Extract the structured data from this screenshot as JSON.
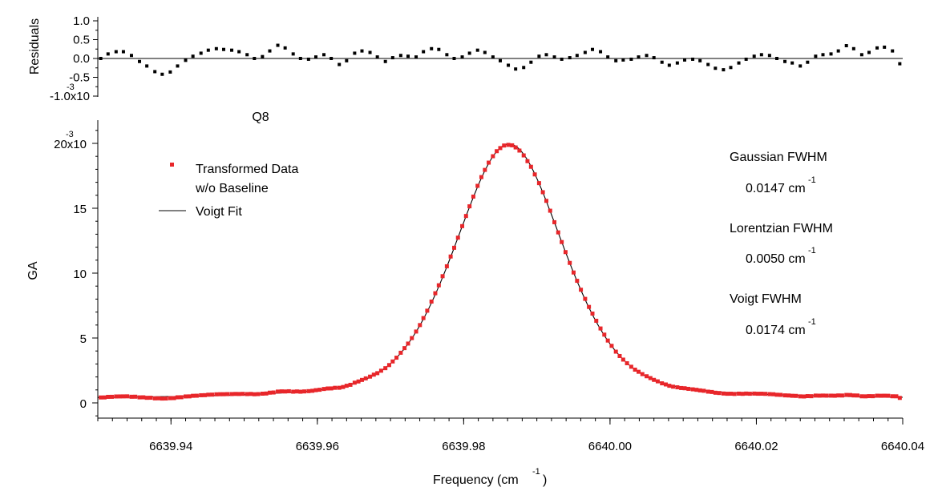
{
  "chart_data": [
    {
      "type": "scatter",
      "ylabel": "Residuals",
      "ylim": [
        -0.001,
        0.001
      ],
      "xlim": [
        6639.93,
        6640.04
      ],
      "y_ticks": [
        "1.0",
        "0.5",
        "0.0",
        "-0.5",
        "-1.0x10"
      ],
      "y_tick_values": [
        0.001,
        0.0005,
        0,
        -0.0005,
        -0.001
      ],
      "y_exponent": "-3",
      "grid": false,
      "series": [
        {
          "color": "#000000",
          "x": [
            6639.9304,
            6639.9314,
            6639.9325,
            6639.9335,
            6639.9346,
            6639.9357,
            6639.9367,
            6639.9378,
            6639.9388,
            6639.9399,
            6639.9409,
            6639.942,
            6639.943,
            6639.9441,
            6639.9451,
            6639.9462,
            6639.9472,
            6639.9483,
            6639.9493,
            6639.9504,
            6639.9514,
            6639.9525,
            6639.9535,
            6639.9546,
            6639.9556,
            6639.9567,
            6639.9577,
            6639.9588,
            6639.9598,
            6639.9609,
            6639.9619,
            6639.963,
            6639.964,
            6639.9651,
            6639.9661,
            6639.9672,
            6639.9682,
            6639.9693,
            6639.9703,
            6639.9714,
            6639.9724,
            6639.9735,
            6639.9745,
            6639.9756,
            6639.9766,
            6639.9777,
            6639.9787,
            6639.9798,
            6639.9808,
            6639.9819,
            6639.9829,
            6639.984,
            6639.985,
            6639.9861,
            6639.9871,
            6639.9882,
            6639.9892,
            6639.9903,
            6639.9913,
            6639.9924,
            6639.9934,
            6639.9945,
            6639.9955,
            6639.9966,
            6639.9976,
            6639.9987,
            6639.9997,
            6640.0008,
            6640.0018,
            6640.0029,
            6640.0039,
            6640.005,
            6640.006,
            6640.0071,
            6640.0081,
            6640.0092,
            6640.0102,
            6640.0113,
            6640.0123,
            6640.0134,
            6640.0144,
            6640.0155,
            6640.0165,
            6640.0176,
            6640.0186,
            6640.0197,
            6640.0207,
            6640.0218,
            6640.0228,
            6640.0239,
            6640.0249,
            6640.026,
            6640.027,
            6640.0281,
            6640.0291,
            6640.0302,
            6640.0312,
            6640.0323,
            6640.0333,
            6640.0344,
            6640.0354,
            6640.0365,
            6640.0375,
            6640.0386,
            6640.0396
          ],
          "y": [
            0.0,
            0.00012,
            0.00018,
            0.00018,
            8e-05,
            -8e-05,
            -0.0002,
            -0.00035,
            -0.00042,
            -0.00036,
            -0.0002,
            -5e-05,
            6e-05,
            0.00014,
            0.00022,
            0.00026,
            0.00024,
            0.00022,
            0.00018,
            0.0001,
            0.0,
            5e-05,
            0.0002,
            0.00035,
            0.00028,
            0.00012,
            0.0,
            -2e-05,
            4e-05,
            0.0001,
            0.0,
            -0.00016,
            -6e-05,
            0.00014,
            0.0002,
            0.00016,
            4e-05,
            -8e-05,
            2e-05,
            8e-05,
            6e-05,
            4e-05,
            0.00018,
            0.00026,
            0.00024,
            0.0001,
            0.0,
            4e-05,
            0.00014,
            0.00022,
            0.00016,
            4e-05,
            -6e-05,
            -0.00018,
            -0.00028,
            -0.00024,
            -0.0001,
            6e-05,
            0.0001,
            4e-05,
            -2e-05,
            2e-05,
            8e-05,
            0.00016,
            0.00024,
            0.00018,
            4e-05,
            -6e-05,
            -4e-05,
            -2e-05,
            4e-05,
            8e-05,
            2e-05,
            -0.0001,
            -0.00018,
            -0.00012,
            -4e-05,
            -2e-05,
            -6e-05,
            -0.00016,
            -0.00026,
            -0.0003,
            -0.00024,
            -0.00012,
            -2e-05,
            6e-05,
            0.0001,
            8e-05,
            0.0,
            -8e-05,
            -0.00012,
            -0.0002,
            -0.0001,
            6e-05,
            0.0001,
            0.00012,
            0.0002,
            0.00034,
            0.00026,
            0.0001,
            0.00016,
            0.00028,
            0.0003,
            0.0002,
            -0.00014
          ]
        }
      ]
    },
    {
      "type": "scatter",
      "title": "Q8",
      "xlabel": "Frequency (cm",
      "xlabel_sup": "-1",
      "xlabel_end": ")",
      "ylabel": "GA",
      "xlim": [
        6639.93,
        6640.04
      ],
      "ylim": [
        -1,
        22
      ],
      "x_ticks": [
        "6639.94",
        "6639.96",
        "6639.98",
        "6640.00",
        "6640.02",
        "6640.04"
      ],
      "x_tick_values": [
        6639.94,
        6639.96,
        6639.98,
        6640.0,
        6640.02,
        6640.04
      ],
      "y_ticks": [
        "0",
        "5",
        "10",
        "15",
        "20x10"
      ],
      "y_tick_values": [
        0,
        5,
        10,
        15,
        20
      ],
      "y_exponent": "-3",
      "grid": false,
      "legend_position": "top-left",
      "series": [
        {
          "name": "Transformed Data",
          "name_line2": "w/o Baseline",
          "marker": "square",
          "color": "#e8262a",
          "peak_x": 6639.9862,
          "peak_y": 19.7,
          "fwhm_gaussian": 0.0147,
          "fwhm_lorentzian": 0.005,
          "residual_source": 0
        },
        {
          "name": "Voigt Fit",
          "style": "line",
          "color": "#000000",
          "center": 6639.9862,
          "amplitude": 19.7,
          "fwhm_gaussian": 0.0147,
          "fwhm_lorentzian": 0.005
        }
      ],
      "annotations": [
        {
          "label": "Gaussian FWHM",
          "value": "0.0147 cm",
          "sup": "-1"
        },
        {
          "label": "Lorentzian FWHM",
          "value": "0.0050 cm",
          "sup": "-1"
        },
        {
          "label": "Voigt FWHM",
          "value": "0.0174 cm",
          "sup": "-1"
        }
      ]
    }
  ]
}
